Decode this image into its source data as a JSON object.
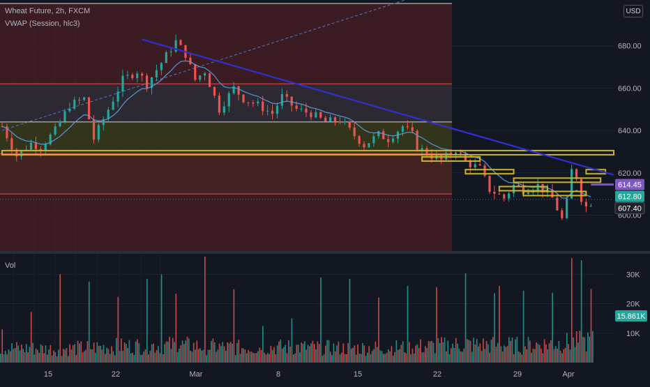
{
  "legend": {
    "symbol": "Wheat Future, 2h, FXCM",
    "indicator": "VWAP (Session, hlc3)",
    "volume_pane": "Vol"
  },
  "currency_button": "USD",
  "colors": {
    "background": "#131722",
    "up": "#26a69a",
    "down": "#ef5350",
    "vwap": "#5a9bd8",
    "trendline": "#3030d0",
    "level": "#c9b32a",
    "range_red": "#4a1f24",
    "range_grey": "#2a2e39",
    "range_olive": "#3a3a16",
    "badge_purple": "#7e57c2",
    "badge_teal": "#26a69a",
    "badge_dark": "#1e222d"
  },
  "chart_data": [
    {
      "type": "candlestick",
      "title": "Wheat Future, 2h, FXCM",
      "xlabel": "",
      "ylabel": "",
      "x_ticks": [
        "15",
        "22",
        "Mar",
        "8",
        "15",
        "22",
        "29",
        "Apr"
      ],
      "y_ticks": [
        600,
        620,
        640,
        660,
        680
      ],
      "y_tick_labels": [
        "600.00",
        "620.00",
        "640.00",
        "660.00",
        "680.00"
      ],
      "ylim": [
        584,
        700
      ],
      "grid": true,
      "price_path": [
        [
          0,
          642
        ],
        [
          3,
          628
        ],
        [
          6,
          634
        ],
        [
          8,
          632
        ],
        [
          11,
          640
        ],
        [
          14,
          652
        ],
        [
          17,
          655
        ],
        [
          19,
          636
        ],
        [
          22,
          650
        ],
        [
          25,
          664
        ],
        [
          28,
          668
        ],
        [
          30,
          662
        ],
        [
          33,
          672
        ],
        [
          36,
          682
        ],
        [
          38,
          676
        ],
        [
          40,
          664
        ],
        [
          42,
          668
        ],
        [
          45,
          650
        ],
        [
          48,
          660
        ],
        [
          50,
          655
        ],
        [
          53,
          652
        ],
        [
          56,
          648
        ],
        [
          58,
          656
        ],
        [
          61,
          650
        ],
        [
          64,
          648
        ],
        [
          67,
          644
        ],
        [
          70,
          645
        ],
        [
          72,
          640
        ],
        [
          75,
          633
        ],
        [
          78,
          638
        ],
        [
          80,
          636
        ],
        [
          83,
          642
        ],
        [
          85,
          638
        ],
        [
          86,
          632
        ],
        [
          89,
          628
        ],
        [
          91,
          626
        ],
        [
          94,
          631
        ],
        [
          96,
          625
        ],
        [
          99,
          622
        ],
        [
          101,
          612
        ],
        [
          104,
          608
        ],
        [
          106,
          614
        ],
        [
          108,
          612
        ],
        [
          111,
          614
        ],
        [
          114,
          608
        ],
        [
          116,
          598
        ],
        [
          117,
          606
        ],
        [
          118,
          621
        ],
        [
          119,
          618
        ],
        [
          120,
          608
        ],
        [
          121,
          604
        ],
        [
          122,
          606
        ]
      ],
      "vwap_overlay": "VWAP (Session, hlc3)",
      "ranges": [
        {
          "from": 642,
          "to": 700,
          "color": "range_red"
        },
        {
          "from": 628,
          "to": 662,
          "color": "range_grey"
        },
        {
          "from": 610,
          "to": 644,
          "color": "range_olive"
        },
        {
          "from": 582,
          "to": 628,
          "color": "range_red"
        }
      ],
      "range_lines": [
        700,
        662,
        644,
        629,
        610
      ],
      "trendline": [
        [
          29,
          683
        ],
        [
          133,
          619
        ]
      ],
      "dashed_line": [
        [
          0,
          640
        ],
        [
          88,
          705
        ]
      ],
      "horizontal_levels": [
        {
          "from": 0,
          "to": 133,
          "price": 629.5
        },
        {
          "from": 87,
          "to": 99,
          "price": 626.5
        },
        {
          "from": 96,
          "to": 106,
          "price": 620.5
        },
        {
          "from": 103,
          "to": 113,
          "price": 612.5
        },
        {
          "from": 106,
          "to": 124,
          "price": 616.5
        },
        {
          "from": 108,
          "to": 121,
          "price": 610.2
        },
        {
          "from": 121,
          "to": 125,
          "price": 620.5
        }
      ],
      "price_badges": [
        {
          "value": 614.45,
          "label": "614.45",
          "color": "badge_purple"
        },
        {
          "value": 612.8,
          "label": "612.80",
          "color": "badge_teal"
        },
        {
          "value": 607.4,
          "label": "607.40",
          "color": "badge_dark"
        }
      ],
      "last_price_line": 607.4,
      "purple_marker": [
        [
          122,
          614.45
        ],
        [
          133,
          614.45
        ]
      ]
    },
    {
      "type": "bar",
      "title": "Vol",
      "y_ticks": [
        10000,
        20000,
        30000
      ],
      "y_tick_labels": [
        "10K",
        "20K",
        "30K"
      ],
      "ylim": [
        0,
        36000
      ],
      "last_value": 15861,
      "last_value_label": "15.861K",
      "volume_profile": [
        [
          0,
          4500
        ],
        [
          12,
          4200
        ],
        [
          24,
          5000
        ],
        [
          36,
          5400
        ],
        [
          48,
          4600
        ],
        [
          60,
          4800
        ],
        [
          72,
          4400
        ],
        [
          84,
          4700
        ],
        [
          96,
          5600
        ],
        [
          108,
          5200
        ],
        [
          118,
          6200
        ],
        [
          123,
          6800
        ]
      ],
      "volume_spikes": [
        [
          118,
          35500
        ],
        [
          122,
          25000
        ],
        [
          103,
          26000
        ],
        [
          33,
          30000
        ],
        [
          12,
          30000
        ]
      ]
    }
  ]
}
